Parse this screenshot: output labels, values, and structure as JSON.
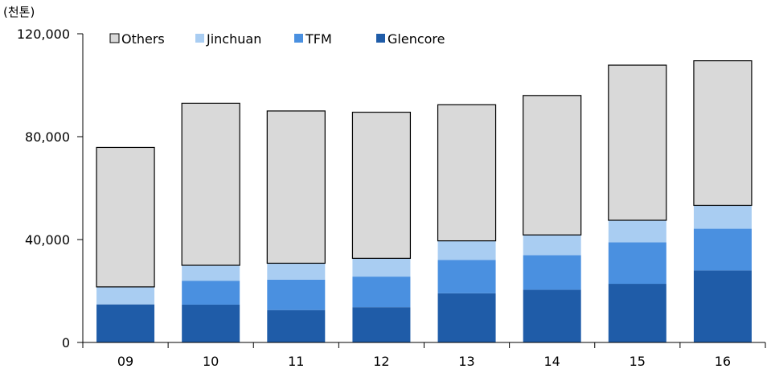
{
  "chart_data": {
    "type": "bar",
    "stacked": true,
    "unit_label": "(천톤)",
    "categories": [
      "09",
      "10",
      "11",
      "12",
      "13",
      "14",
      "15",
      "16"
    ],
    "series": [
      {
        "name": "Glencore",
        "color": "#1f5ca8",
        "values": [
          14800,
          14700,
          12600,
          13700,
          19100,
          20500,
          22800,
          28000
        ]
      },
      {
        "name": "TFM",
        "color": "#4a90e0",
        "values": [
          0,
          9300,
          11800,
          11900,
          13000,
          13400,
          16100,
          16200
        ]
      },
      {
        "name": "Jinchuan",
        "color": "#a9cdf2",
        "values": [
          6800,
          6000,
          6400,
          7100,
          7400,
          7900,
          8600,
          9100
        ]
      },
      {
        "name": "Others",
        "color": "#d9d9d9",
        "values": [
          54200,
          63000,
          59200,
          56800,
          52900,
          54200,
          60300,
          56200
        ]
      }
    ],
    "legend_order": [
      "Others",
      "Jinchuan",
      "TFM",
      "Glencore"
    ],
    "yticks": [
      "0",
      "40,000",
      "80,000",
      "120,000"
    ],
    "ylim": [
      0,
      120000
    ],
    "ytick_values": [
      0,
      40000,
      80000,
      120000
    ],
    "legend_position": "top-left",
    "grid": false
  }
}
